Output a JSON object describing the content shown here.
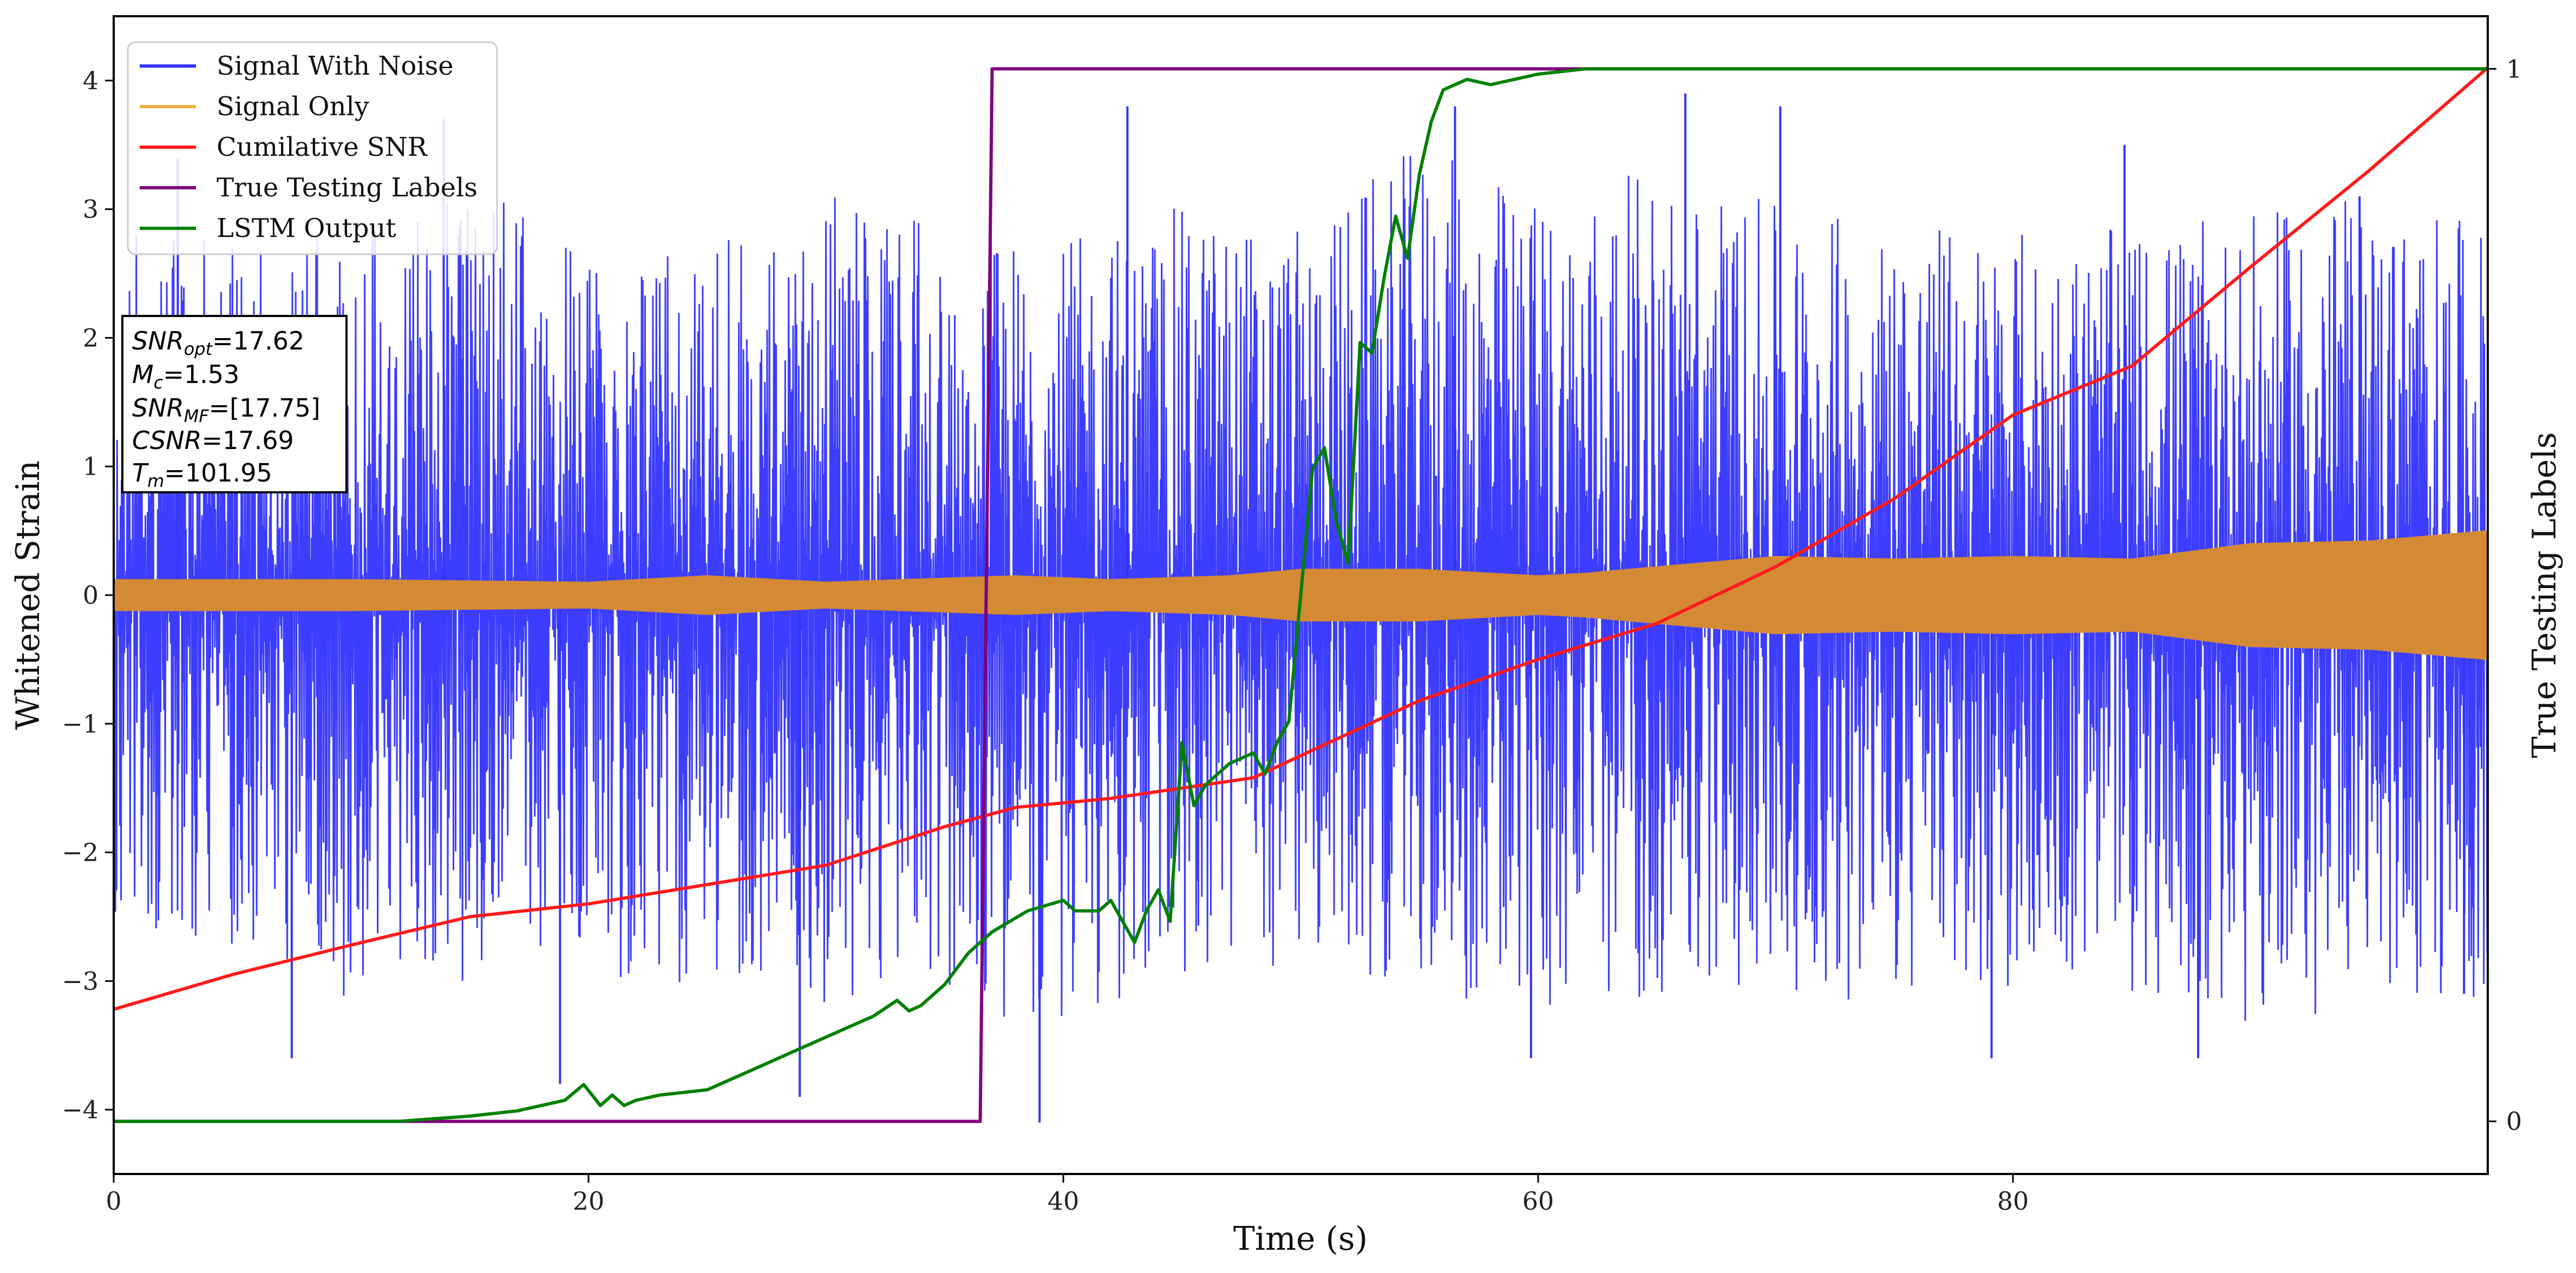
{
  "chart_data": {
    "type": "line",
    "xlabel": "Time (s)",
    "ylabel": "Whitened Strain",
    "y2label": "True Testing Labels",
    "xlim": [
      0,
      100
    ],
    "ylim": [
      -4.5,
      4.5
    ],
    "y2lim": [
      -0.05,
      1.05
    ],
    "xticks": [
      0,
      20,
      40,
      60,
      80
    ],
    "yticks": [
      -4,
      -3,
      -2,
      -1,
      0,
      1,
      2,
      3,
      4
    ],
    "y2ticks": [
      0,
      1
    ],
    "legend_position": "top-left",
    "legend": [
      {
        "label": "Signal With Noise",
        "color": "#3333ff"
      },
      {
        "label": "Signal Only",
        "color": "#f5b041"
      },
      {
        "label": "Cumilative SNR",
        "color": "#ff1a1a"
      },
      {
        "label": "True Testing Labels",
        "color": "#800080"
      },
      {
        "label": "LSTM Output",
        "color": "#008000"
      }
    ],
    "info_box": [
      {
        "main": "SNR",
        "sub": "opt",
        "value": "=17.62"
      },
      {
        "main": "M",
        "sub": "c",
        "value": "=1.53"
      },
      {
        "main": "SNR",
        "sub": "MF",
        "value": "=[17.75]"
      },
      {
        "main": "CSNR",
        "sub": "",
        "value": "=17.69"
      },
      {
        "main": "T",
        "sub": "m",
        "value": "=101.95"
      }
    ],
    "series": [
      {
        "name": "Signal With Noise",
        "axis": "left",
        "style": "noise-band",
        "color": "#3333ff",
        "envelope_upper": [
          2.9,
          3.1,
          3.0,
          3.4,
          2.8,
          3.0,
          3.3,
          3.0,
          2.9,
          3.2,
          3.0,
          3.7,
          3.3,
          3.5,
          3.2,
          3.1,
          3.0,
          3.0,
          3.1,
          3.3,
          3.0
        ],
        "envelope_lower": [
          -2.6,
          -3.0,
          -3.3,
          -3.2,
          -3.1,
          -3.2,
          -3.4,
          -3.3,
          -3.6,
          -3.2,
          -3.0,
          -3.2,
          -3.5,
          -3.3,
          -3.2,
          -3.4,
          -3.2,
          -3.3,
          -3.6,
          -3.4,
          -3.3
        ],
        "x_envelope": [
          0,
          5,
          10,
          15,
          20,
          25,
          30,
          35,
          40,
          45,
          50,
          55,
          60,
          65,
          70,
          75,
          80,
          85,
          90,
          95,
          100
        ],
        "outliers": [
          [
            2.7,
            3.4
          ],
          [
            7.5,
            -3.6
          ],
          [
            13.9,
            3.7
          ],
          [
            18.8,
            -3.8
          ],
          [
            28.9,
            -3.9
          ],
          [
            39.0,
            -4.1
          ],
          [
            42.7,
            3.8
          ],
          [
            56.5,
            3.8
          ],
          [
            59.7,
            -3.6
          ],
          [
            66.2,
            3.9
          ],
          [
            70.2,
            3.8
          ],
          [
            79.1,
            -3.6
          ],
          [
            84.7,
            3.5
          ],
          [
            87.8,
            -3.6
          ],
          [
            94.6,
            3.1
          ],
          [
            99.0,
            -3.1
          ]
        ]
      },
      {
        "name": "Signal Only",
        "axis": "left",
        "style": "envelope",
        "color": "#d48a35",
        "x": [
          0,
          10,
          20,
          25,
          30,
          38,
          42,
          47,
          50,
          55,
          60,
          62,
          65,
          70,
          75,
          80,
          85,
          90,
          95,
          100
        ],
        "amplitude": [
          0.12,
          0.12,
          0.1,
          0.15,
          0.1,
          0.15,
          0.12,
          0.15,
          0.2,
          0.2,
          0.15,
          0.17,
          0.22,
          0.3,
          0.28,
          0.3,
          0.28,
          0.4,
          0.42,
          0.5
        ]
      },
      {
        "name": "Cumilative SNR",
        "axis": "left",
        "color": "#ff1a1a",
        "x": [
          0,
          5,
          10,
          15,
          20,
          25,
          30,
          35,
          38,
          42,
          48,
          55,
          60,
          65,
          70,
          75,
          80,
          85,
          90,
          95,
          100
        ],
        "values": [
          -3.22,
          -2.95,
          -2.72,
          -2.5,
          -2.4,
          -2.25,
          -2.1,
          -1.8,
          -1.65,
          -1.58,
          -1.42,
          -0.82,
          -0.5,
          -0.22,
          0.22,
          0.75,
          1.4,
          1.78,
          2.55,
          3.3,
          4.1
        ]
      },
      {
        "name": "True Testing Labels",
        "axis": "right",
        "color": "#800080",
        "x": [
          0,
          36.5,
          37.0,
          100
        ],
        "values": [
          0,
          0,
          1,
          1
        ]
      },
      {
        "name": "LSTM Output",
        "axis": "right",
        "color": "#008000",
        "x": [
          0,
          12,
          15,
          17,
          19,
          19.8,
          20.5,
          21,
          21.5,
          22,
          23,
          25,
          27,
          29,
          31,
          32,
          33,
          33.5,
          34,
          35,
          36,
          37,
          38.5,
          40,
          40.5,
          41.5,
          42,
          43,
          43.5,
          44,
          44.5,
          45,
          45.5,
          46,
          47,
          48,
          48.5,
          49,
          49.5,
          50,
          50.5,
          51,
          51.5,
          52,
          52.5,
          53,
          53.5,
          54,
          54.5,
          55,
          55.5,
          56,
          57,
          58,
          59,
          60,
          62,
          65,
          70,
          100
        ],
        "values": [
          0,
          0,
          0.005,
          0.01,
          0.02,
          0.035,
          0.015,
          0.025,
          0.015,
          0.02,
          0.025,
          0.03,
          0.05,
          0.07,
          0.09,
          0.1,
          0.115,
          0.105,
          0.11,
          0.13,
          0.16,
          0.18,
          0.2,
          0.21,
          0.2,
          0.2,
          0.21,
          0.17,
          0.2,
          0.22,
          0.19,
          0.36,
          0.3,
          0.32,
          0.34,
          0.35,
          0.33,
          0.36,
          0.38,
          0.5,
          0.62,
          0.64,
          0.57,
          0.53,
          0.74,
          0.73,
          0.8,
          0.86,
          0.82,
          0.9,
          0.95,
          0.98,
          0.99,
          0.985,
          0.99,
          0.995,
          1.0,
          1.0,
          1.0,
          1.0
        ]
      }
    ]
  }
}
